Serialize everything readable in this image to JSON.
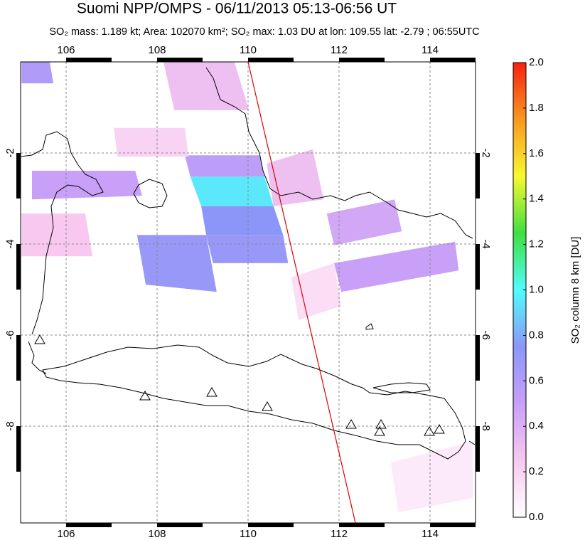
{
  "chart_data": {
    "type": "map",
    "title": "Suomi NPP/OMPS - 06/11/2013 05:13-06:56 UT",
    "subtitle": "SO₂ mass: 1.189 kt; Area: 102070 km²; SO₂ max: 1.03 DU at lon: 109.55 lat: -2.79 ; 06:55UTC",
    "colorbar_label": "SO₂ column 8 km [DU]",
    "xlim": [
      105,
      115
    ],
    "ylim": [
      -10.125,
      0
    ],
    "xticks": [
      106,
      108,
      110,
      112,
      114
    ],
    "yticks": [
      -2,
      -4,
      -6,
      -8
    ],
    "grid": true,
    "clim": [
      0,
      2
    ],
    "colormap": [
      "#ffffff",
      "#f8c8f0",
      "#c8a0f8",
      "#8c96f8",
      "#50fcfc",
      "#40e040",
      "#f8f830",
      "#f89820",
      "#f82010"
    ],
    "cticks": [
      {
        "value": 0,
        "label": "0.0"
      },
      {
        "value": 0.2,
        "label": "0.2"
      },
      {
        "value": 0.4,
        "label": "0.4"
      },
      {
        "value": 0.6,
        "label": "0.6"
      },
      {
        "value": 0.8,
        "label": "0.8"
      },
      {
        "value": 1.0,
        "label": "1.0"
      },
      {
        "value": 1.2,
        "label": "1.2"
      },
      {
        "value": 1.4,
        "label": "1.4"
      },
      {
        "value": 1.6,
        "label": "1.6"
      },
      {
        "value": 1.8,
        "label": "1.8"
      },
      {
        "value": 2.0,
        "label": "2.0"
      }
    ],
    "pixels": [
      {
        "lon": [
          108.73,
          110.36,
          110.56,
          108.97
        ],
        "lat": [
          -2.52,
          -2.52,
          -3.17,
          -3.17
        ],
        "value": 0.95
      },
      {
        "lon": [
          108.97,
          110.56,
          110.77,
          109.08
        ],
        "lat": [
          -3.17,
          -3.17,
          -3.8,
          -3.8
        ],
        "value": 0.75
      },
      {
        "lon": [
          109.08,
          110.77,
          110.88,
          109.23
        ],
        "lat": [
          -3.8,
          -3.8,
          -4.42,
          -4.42
        ],
        "value": 0.7
      },
      {
        "lon": [
          107.56,
          109.08,
          109.31,
          107.75
        ],
        "lat": [
          -3.8,
          -3.8,
          -5.05,
          -4.89
        ],
        "value": 0.7
      },
      {
        "lon": [
          108.61,
          110.25,
          110.36,
          108.73
        ],
        "lat": [
          -2.05,
          -2.05,
          -2.52,
          -2.52
        ],
        "value": 0.55
      },
      {
        "lon": [
          108.14,
          109.7,
          110.02,
          108.38
        ],
        "lat": [
          0,
          0,
          -1.06,
          -1.06
        ],
        "value": 0.3
      },
      {
        "lon": [
          105.02,
          105.64,
          105.72,
          105.02
        ],
        "lat": [
          0,
          0,
          -0.47,
          -0.47
        ],
        "value": 0.6
      },
      {
        "lon": [
          105.25,
          107.52,
          107.67,
          105.25
        ],
        "lat": [
          -2.39,
          -2.39,
          -2.94,
          -3.02
        ],
        "value": 0.5
      },
      {
        "lon": [
          111.89,
          114.55,
          114.63,
          112.05
        ],
        "lat": [
          -4.42,
          -3.95,
          -4.58,
          -5.05
        ],
        "value": 0.5
      },
      {
        "lon": [
          111.73,
          113.22,
          113.38,
          111.89
        ],
        "lat": [
          -3.33,
          -3.02,
          -3.72,
          -4.03
        ],
        "value": 0.45
      },
      {
        "lon": [
          110.41,
          111.42,
          111.66,
          110.56
        ],
        "lat": [
          -2.23,
          -1.92,
          -3.02,
          -3.17
        ],
        "value": 0.3
      },
      {
        "lon": [
          105.02,
          106.42,
          106.58,
          105.02
        ],
        "lat": [
          -3.33,
          -3.33,
          -4.27,
          -4.27
        ],
        "value": 0.25
      },
      {
        "lon": [
          107.05,
          108.61,
          108.69,
          107.13
        ],
        "lat": [
          -1.45,
          -1.45,
          -2.08,
          -2.08
        ],
        "value": 0.2
      },
      {
        "lon": [
          113.14,
          114.94,
          114.94,
          113.3
        ],
        "lat": [
          -8.8,
          -8.33,
          -9.58,
          -9.89
        ],
        "value": 0.1
      },
      {
        "lon": [
          110.95,
          111.89,
          112.05,
          111.11
        ],
        "lat": [
          -4.73,
          -4.42,
          -5.36,
          -5.67
        ],
        "value": 0.15
      }
    ]
  }
}
